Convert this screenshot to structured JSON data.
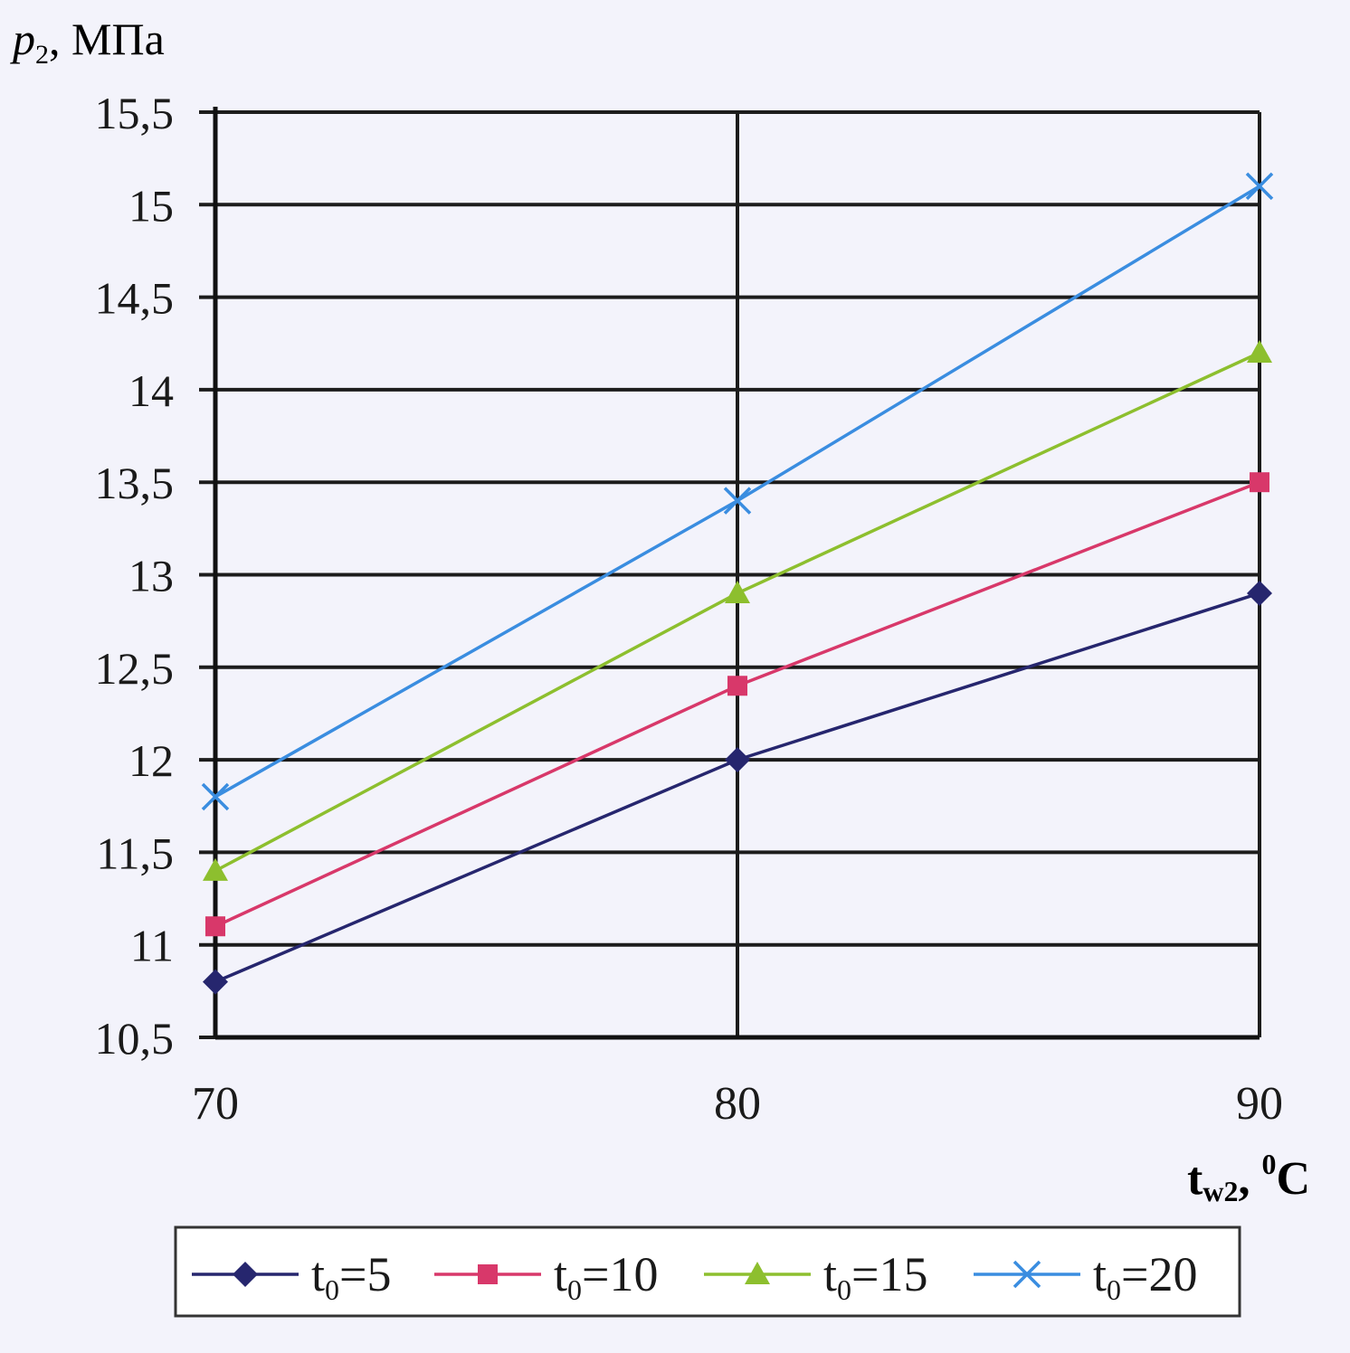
{
  "chart_data": {
    "type": "line",
    "ylabel": {
      "symbol": "p",
      "subscript": "2",
      "unit": ", МПа"
    },
    "xlabel": {
      "symbol": "t",
      "subscript": "w2",
      "unit_prefix": ", ",
      "superscript": "0",
      "unit": "C"
    },
    "x": [
      70,
      80,
      90
    ],
    "x_tick_labels": [
      "70",
      "80",
      "90"
    ],
    "xlim": [
      70,
      90
    ],
    "ylim": [
      10.5,
      15.5
    ],
    "y_ticks": [
      10.5,
      11,
      11.5,
      12,
      12.5,
      13,
      13.5,
      14,
      14.5,
      15,
      15.5
    ],
    "y_tick_labels": [
      "10,5",
      "11",
      "11,5",
      "12",
      "12,5",
      "13",
      "13,5",
      "14",
      "14,5",
      "15",
      "15,5"
    ],
    "grid": true,
    "legend_position": "bottom",
    "series": [
      {
        "name": "t0=5",
        "label_main": "t",
        "label_sub": "0",
        "label_rest": "=5",
        "marker": "diamond",
        "color": "#26266e",
        "values": [
          10.8,
          12.0,
          12.9
        ]
      },
      {
        "name": "t0=10",
        "label_main": "t",
        "label_sub": "0",
        "label_rest": "=10",
        "marker": "square",
        "color": "#d8386a",
        "values": [
          11.1,
          12.4,
          13.5
        ]
      },
      {
        "name": "t0=15",
        "label_main": "t",
        "label_sub": "0",
        "label_rest": "=15",
        "marker": "triangle",
        "color": "#8dbf2e",
        "values": [
          11.4,
          12.9,
          14.2
        ]
      },
      {
        "name": "t0=20",
        "label_main": "t",
        "label_sub": "0",
        "label_rest": "=20",
        "marker": "cross",
        "color": "#3a8de0",
        "values": [
          11.8,
          13.4,
          15.1
        ]
      }
    ]
  }
}
